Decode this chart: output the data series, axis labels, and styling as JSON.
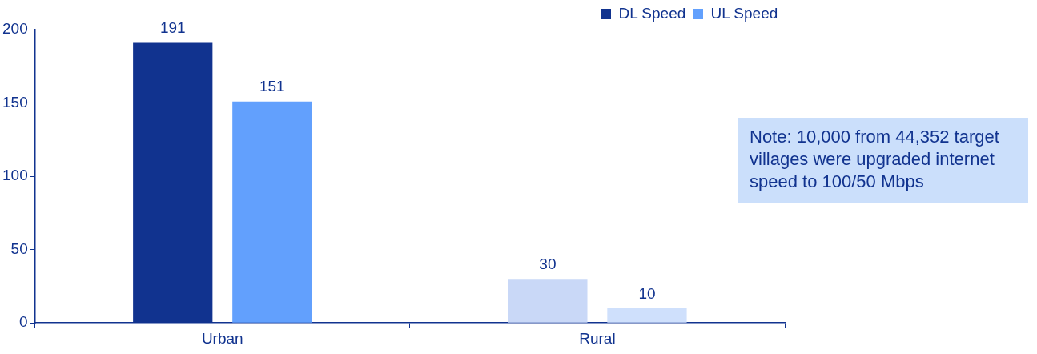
{
  "chart_data": {
    "type": "bar",
    "categories": [
      "Urban",
      "Rural"
    ],
    "series": [
      {
        "name": "DL Speed",
        "color": "#11338f",
        "colors": [
          "#11338f",
          "#c9d8f7"
        ],
        "values": [
          191,
          30
        ]
      },
      {
        "name": "UL Speed",
        "color": "#62a0fd",
        "colors": [
          "#62a0fd",
          "#cfe0fc"
        ],
        "values": [
          151,
          10
        ]
      }
    ],
    "ylim": [
      0,
      200
    ],
    "yticks": [
      0,
      50,
      100,
      150,
      200
    ],
    "grid": false,
    "legend": "top right",
    "data_labels": true,
    "annotations": [
      "Note: 10,000 from 44,352 target villages were upgraded internet speed to 100/50 Mbps"
    ]
  }
}
